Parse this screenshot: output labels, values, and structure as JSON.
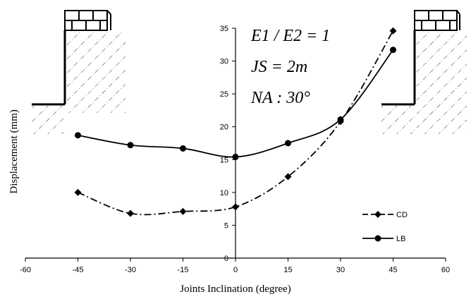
{
  "chart_data": {
    "type": "line",
    "title": "",
    "xlabel": "Joints Inclination (degree)",
    "ylabel": "Displacement (mm)",
    "xlim": [
      -60,
      60
    ],
    "ylim": [
      0,
      35
    ],
    "x_ticks": [
      -60,
      -45,
      -30,
      -15,
      0,
      15,
      30,
      45,
      60
    ],
    "y_ticks": [
      0,
      5,
      10,
      15,
      20,
      25,
      30,
      35
    ],
    "grid": false,
    "legend_position": "bottom-right",
    "annotations": [
      "E1 / E2 = 1",
      "JS = 2m",
      "NA : 30°"
    ],
    "x": [
      -45,
      -30,
      -15,
      0,
      15,
      30,
      45
    ],
    "series": [
      {
        "name": "CD",
        "marker": "diamond",
        "line_style": "dash-dot",
        "values": [
          10.0,
          6.8,
          7.1,
          7.8,
          12.4,
          20.8,
          34.6
        ]
      },
      {
        "name": "LB",
        "marker": "circle",
        "line_style": "solid",
        "values": [
          18.7,
          17.2,
          16.7,
          15.4,
          17.5,
          21.1,
          31.7
        ]
      }
    ],
    "colors": {
      "line": "#000000",
      "hatch": "#000000",
      "background": "#ffffff"
    }
  }
}
